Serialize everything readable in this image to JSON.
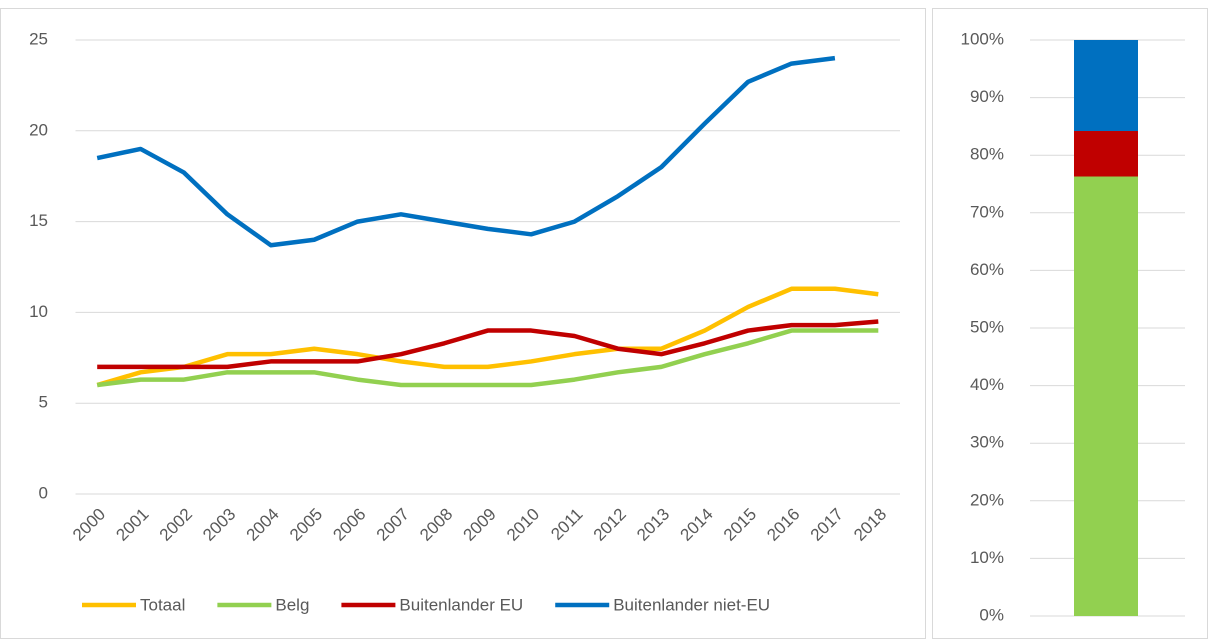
{
  "chart_data": [
    {
      "type": "line",
      "categories": [
        "2000",
        "2001",
        "2002",
        "2003",
        "2004",
        "2005",
        "2006",
        "2007",
        "2008",
        "2009",
        "2010",
        "2011",
        "2012",
        "2013",
        "2014",
        "2015",
        "2016",
        "2017",
        "2018"
      ],
      "ylim": [
        0,
        25
      ],
      "yticks": [
        0,
        5,
        10,
        15,
        20,
        25
      ],
      "grid": true,
      "legend": "bottom",
      "series": [
        {
          "name": "Totaal",
          "color": "#ffc000",
          "values": [
            6.0,
            6.7,
            7.0,
            7.7,
            7.7,
            8.0,
            7.7,
            7.3,
            7.0,
            7.0,
            7.3,
            7.7,
            8.0,
            8.0,
            9.0,
            10.3,
            11.3,
            11.3,
            11.0
          ]
        },
        {
          "name": "Belg",
          "color": "#92d050",
          "values": [
            6.0,
            6.3,
            6.3,
            6.7,
            6.7,
            6.7,
            6.3,
            6.0,
            6.0,
            6.0,
            6.0,
            6.3,
            6.7,
            7.0,
            7.7,
            8.3,
            9.0,
            9.0,
            9.0
          ]
        },
        {
          "name": "Buitenlander EU",
          "color": "#c00000",
          "values": [
            7.0,
            7.0,
            7.0,
            7.0,
            7.3,
            7.3,
            7.3,
            7.7,
            8.3,
            9.0,
            9.0,
            8.7,
            8.0,
            7.7,
            8.3,
            9.0,
            9.3,
            9.3,
            9.5
          ]
        },
        {
          "name": "Buitenlander niet-EU",
          "color": "#0070c0",
          "values": [
            18.5,
            19.0,
            17.7,
            15.4,
            13.7,
            14.0,
            15.0,
            15.4,
            15.0,
            14.6,
            14.3,
            15.0,
            16.4,
            18.0,
            20.4,
            22.7,
            23.7,
            24.0,
            null
          ]
        }
      ]
    },
    {
      "type": "stacked_bar",
      "ylim": [
        0,
        100
      ],
      "yticks": [
        {
          "value": 0,
          "label": "0%"
        },
        {
          "value": 10,
          "label": "10%"
        },
        {
          "value": 20,
          "label": "20%"
        },
        {
          "value": 30,
          "label": "30%"
        },
        {
          "value": 40,
          "label": "40%"
        },
        {
          "value": 50,
          "label": "50%"
        },
        {
          "value": 60,
          "label": "60%"
        },
        {
          "value": 70,
          "label": "70%"
        },
        {
          "value": 80,
          "label": "80%"
        },
        {
          "value": 90,
          "label": "90%"
        },
        {
          "value": 100,
          "label": "100%"
        }
      ],
      "grid": true,
      "series": [
        {
          "color": "#92d050",
          "values": [
            76.3
          ]
        },
        {
          "color": "#c00000",
          "values": [
            7.9
          ]
        },
        {
          "color": "#0070c0",
          "values": [
            15.8
          ]
        }
      ]
    }
  ]
}
